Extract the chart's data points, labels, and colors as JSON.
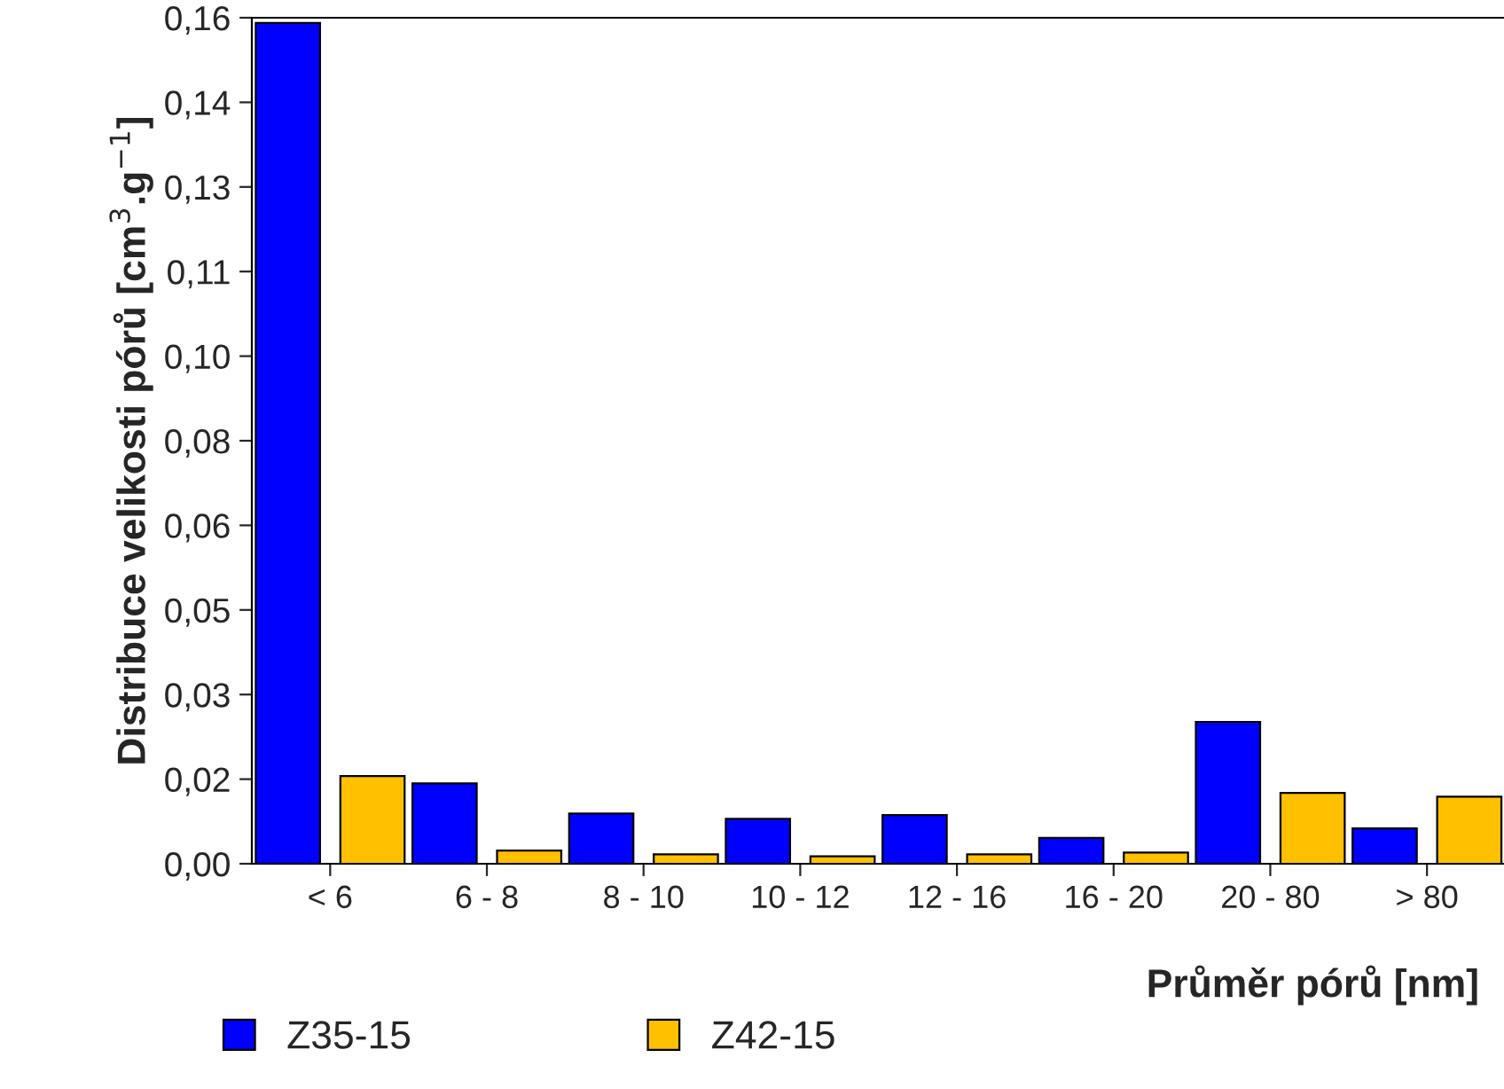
{
  "chart_data": {
    "type": "bar",
    "categories": [
      "< 6",
      "6 - 8",
      "8 - 10",
      "10 - 12",
      "12 - 16",
      "16 - 20",
      "20 - 80",
      "> 80"
    ],
    "series": [
      {
        "name": "Z35-15",
        "color": "#0000ff",
        "values": [
          0.159,
          0.0152,
          0.0095,
          0.0085,
          0.0092,
          0.0049,
          0.0268,
          0.0067
        ]
      },
      {
        "name": "Z42-15",
        "color": "#ffc000",
        "values": [
          0.0166,
          0.0025,
          0.0018,
          0.0014,
          0.0018,
          0.0021,
          0.0134,
          0.0127
        ]
      }
    ],
    "xlabel": "Průměr pórů [nm]",
    "ylabel": "Distribuce velikosti pórů [cm$^{3}$.g$^{−1}$]",
    "ylim": [
      0,
      0.16
    ],
    "yticks": [
      {
        "value": 0,
        "label": "0,00"
      },
      {
        "value": 0.016,
        "label": "0,02"
      },
      {
        "value": 0.032,
        "label": "0,03"
      },
      {
        "value": 0.048,
        "label": "0,05"
      },
      {
        "value": 0.064,
        "label": "0,06"
      },
      {
        "value": 0.08,
        "label": "0,08"
      },
      {
        "value": 0.096,
        "label": "0,10"
      },
      {
        "value": 0.112,
        "label": "0,11"
      },
      {
        "value": 0.128,
        "label": "0,13"
      },
      {
        "value": 0.144,
        "label": "0,14"
      },
      {
        "value": 0.16,
        "label": "0,16"
      }
    ],
    "grid": false,
    "legend": "bottom left"
  }
}
